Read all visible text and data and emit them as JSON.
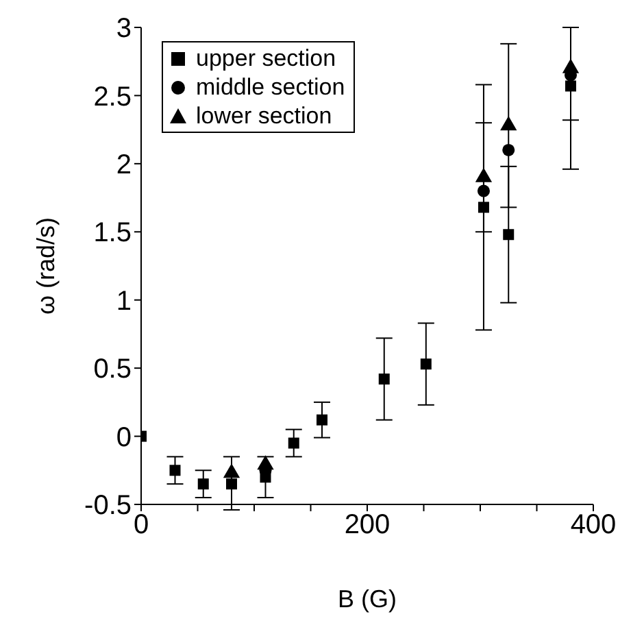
{
  "chart_data": {
    "type": "scatter",
    "xlabel": "B (G)",
    "ylabel": "ω  (rad/s)",
    "xlim": [
      0,
      400
    ],
    "ylim": [
      -0.5,
      3
    ],
    "xticks": [
      0,
      {
        "value": 50,
        "label": null
      },
      {
        "value": 100,
        "label": null
      },
      {
        "value": 150,
        "label": null
      },
      200,
      {
        "value": 250,
        "label": null
      },
      {
        "value": 300,
        "label": null
      },
      {
        "value": 350,
        "label": null
      },
      400
    ],
    "yticks": [
      -0.5,
      0,
      0.5,
      1,
      1.5,
      2,
      2.5,
      3
    ],
    "grid": false,
    "legend": "top left",
    "x": [
      0,
      30,
      55,
      80,
      110,
      135,
      160,
      215,
      252,
      303,
      325,
      380
    ],
    "series": [
      {
        "name": "upper section",
        "color": "#000000",
        "marker": "square",
        "values": [
          0,
          -0.25,
          -0.35,
          -0.35,
          -0.3,
          -0.05,
          0.12,
          0.42,
          0.53,
          1.68,
          1.48,
          2.57
        ],
        "errors": [
          null,
          0.1,
          0.1,
          [
            -0.54,
            -0.15
          ],
          0.15,
          0.1,
          0.13,
          0.3,
          0.3,
          0.9,
          0.5,
          [
            1.96,
            3.0
          ]
        ]
      },
      {
        "name": "middle section",
        "color": "#000000",
        "marker": "circle",
        "values": [
          null,
          null,
          null,
          null,
          -0.25,
          null,
          null,
          null,
          null,
          1.8,
          2.1,
          2.65
        ]
      },
      {
        "name": "lower section",
        "color": "#000000",
        "marker": "triangle",
        "values": [
          null,
          null,
          null,
          -0.27,
          -0.21,
          null,
          null,
          null,
          null,
          1.9,
          2.28,
          2.7
        ],
        "errors": [
          null,
          null,
          null,
          null,
          null,
          null,
          null,
          null,
          null,
          0.4,
          0.6,
          [
            2.32,
            3.0
          ]
        ]
      }
    ]
  }
}
